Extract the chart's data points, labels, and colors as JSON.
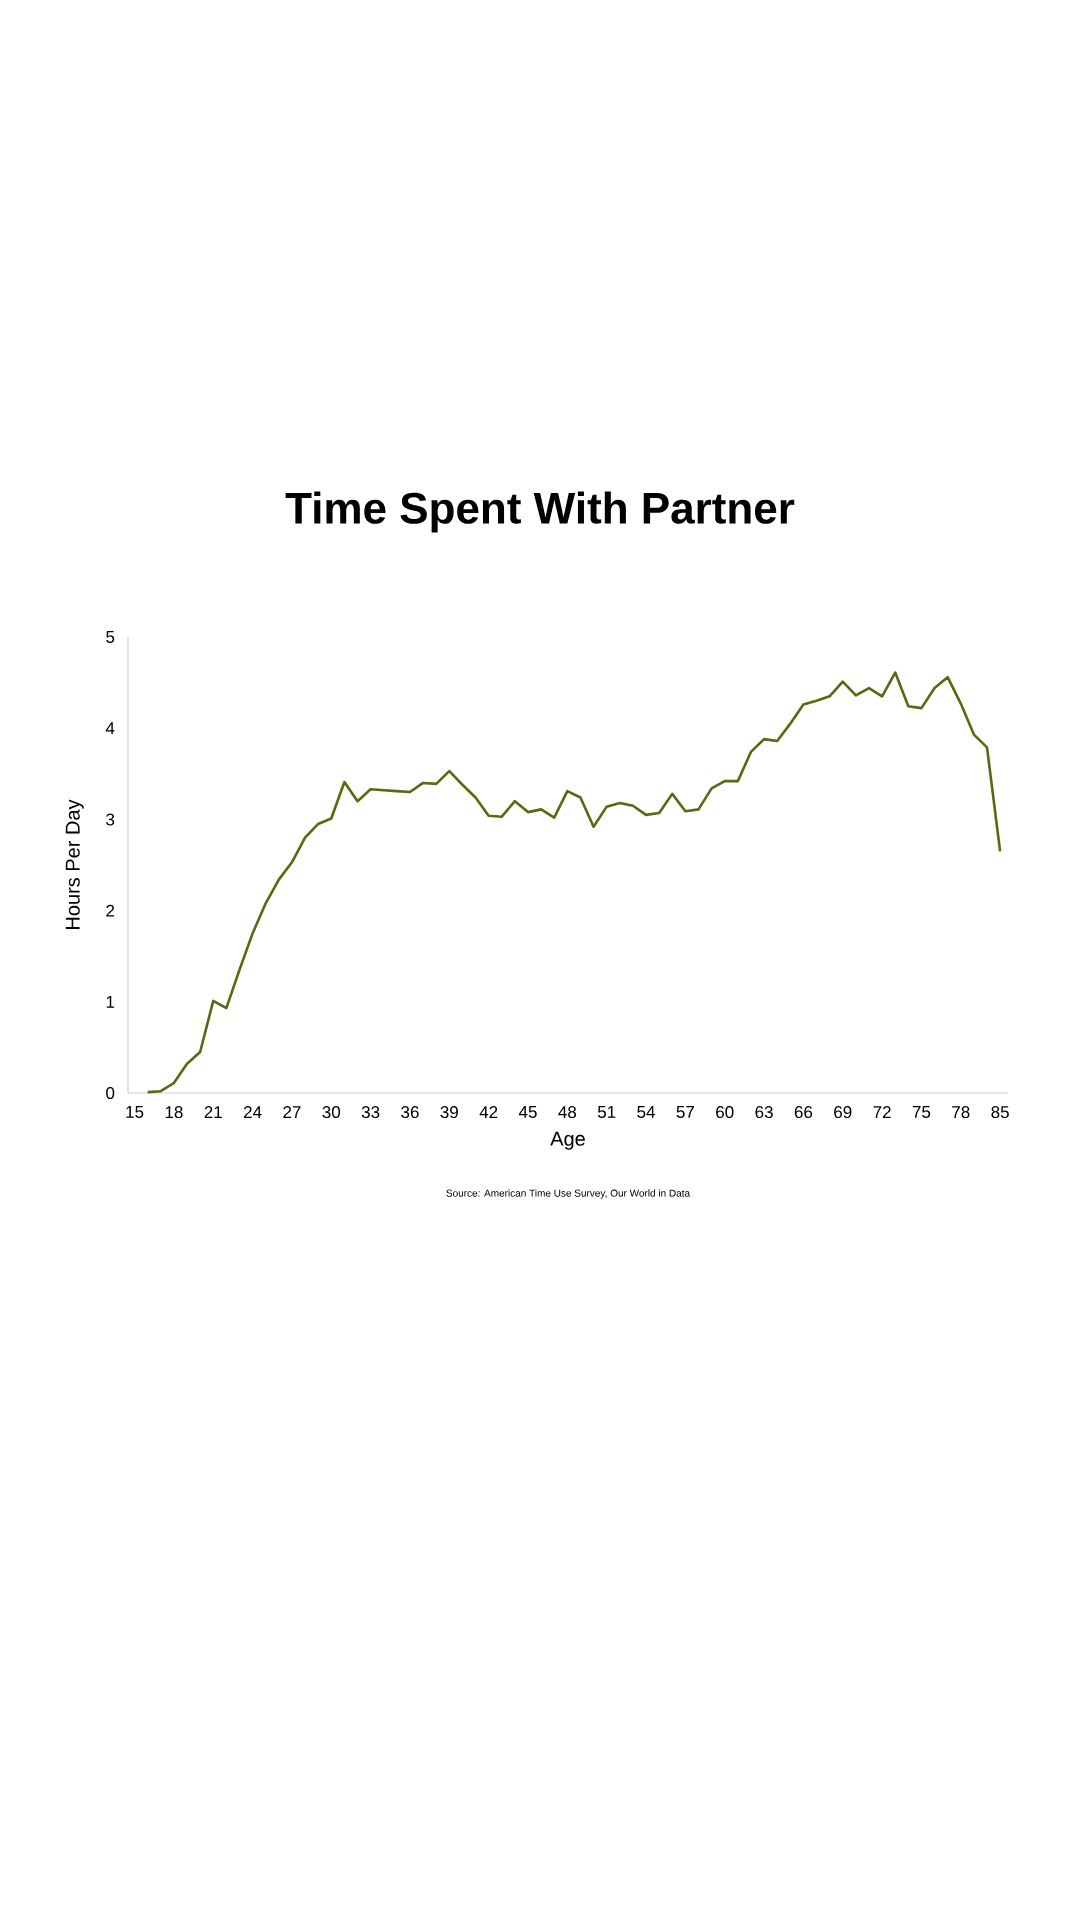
{
  "chart_data": {
    "type": "line",
    "title": "Time Spent With Partner",
    "xlabel": "Age",
    "ylabel": "Hours Per Day",
    "annotations": [
      "Source: American Time Use Survey, Our World in Data"
    ],
    "categories": [
      "15",
      null,
      null,
      "18",
      null,
      null,
      "21",
      null,
      null,
      "24",
      null,
      null,
      "27",
      null,
      null,
      "30",
      null,
      null,
      "33",
      null,
      null,
      "36",
      null,
      null,
      "39",
      null,
      null,
      "42",
      null,
      null,
      "45",
      null,
      null,
      "48",
      null,
      null,
      "51",
      null,
      null,
      "54",
      null,
      null,
      "57",
      null,
      null,
      "60",
      null,
      null,
      "63",
      null,
      null,
      "66",
      null,
      null,
      "69",
      null,
      null,
      "72",
      null,
      null,
      "75",
      null,
      null,
      "78",
      null,
      null,
      "85"
    ],
    "series": [
      {
        "color": "#556b0f",
        "values": [
          null,
          0.01,
          0.02,
          0.11,
          0.32,
          0.45,
          1.01,
          0.93,
          1.35,
          1.75,
          2.08,
          2.34,
          2.53,
          2.8,
          2.95,
          3.01,
          3.41,
          3.2,
          3.33,
          3.32,
          3.31,
          3.3,
          3.4,
          3.39,
          3.53,
          3.38,
          3.24,
          3.04,
          3.03,
          3.2,
          3.08,
          3.11,
          3.02,
          3.31,
          3.24,
          2.92,
          3.14,
          3.18,
          3.15,
          3.05,
          3.07,
          3.28,
          3.09,
          3.11,
          3.34,
          3.42,
          3.42,
          3.74,
          3.88,
          3.86,
          4.05,
          4.26,
          4.3,
          4.35,
          4.51,
          4.36,
          4.44,
          4.35,
          4.61,
          4.24,
          4.22,
          4.44,
          4.56,
          4.27,
          3.93,
          3.79,
          2.65
        ]
      }
    ],
    "ylim": [
      0,
      5
    ],
    "yticks": [
      0,
      1,
      2,
      3,
      4,
      5
    ]
  }
}
